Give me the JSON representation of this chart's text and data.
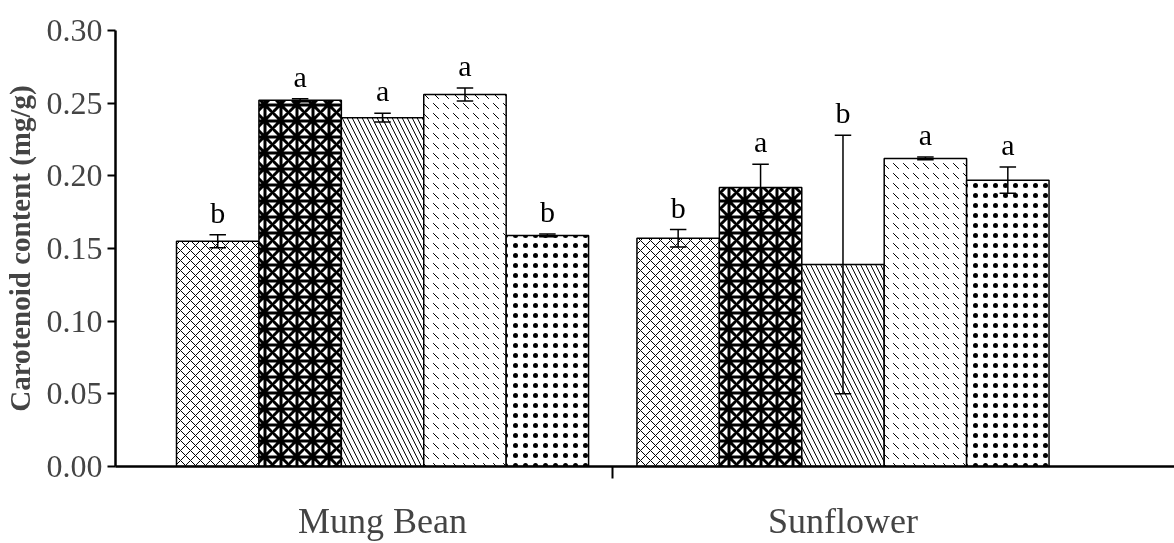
{
  "chart_data": {
    "type": "bar",
    "ylabel": "Carotenoid content (mg/g)",
    "categories": [
      "Mung Bean",
      "Sunflower"
    ],
    "series": [
      {
        "color": "#ffffff",
        "values": [
          0.155,
          0.157
        ],
        "errors": [
          0.0045,
          0.006
        ]
      },
      {
        "color": "#ffffff",
        "values": [
          0.252,
          0.192
        ],
        "errors": [
          0.001,
          0.016
        ]
      },
      {
        "color": "#ffffff",
        "values": [
          0.24,
          0.139
        ],
        "errors": [
          0.003,
          0.089
        ]
      },
      {
        "color": "#ffffff",
        "values": [
          0.256,
          0.212
        ],
        "errors": [
          0.0045,
          0.001
        ]
      },
      {
        "color": "#ffffff",
        "values": [
          0.159,
          0.197
        ],
        "errors": [
          0.001,
          0.009
        ]
      }
    ],
    "ylim": [
      0,
      0.3
    ],
    "yticks": [
      {
        "value": 0,
        "label": "0.00"
      },
      {
        "value": 0.05,
        "label": "0.05"
      },
      {
        "value": 0.1,
        "label": "0.10"
      },
      {
        "value": 0.15,
        "label": "0.15"
      },
      {
        "value": 0.2,
        "label": "0.20"
      },
      {
        "value": 0.25,
        "label": "0.25"
      },
      {
        "value": 0.3,
        "label": "0.30"
      }
    ],
    "grid": false,
    "annotations": [
      "b",
      "a",
      "a",
      "a",
      "b",
      "b",
      "a",
      "b",
      "a",
      "a"
    ]
  }
}
